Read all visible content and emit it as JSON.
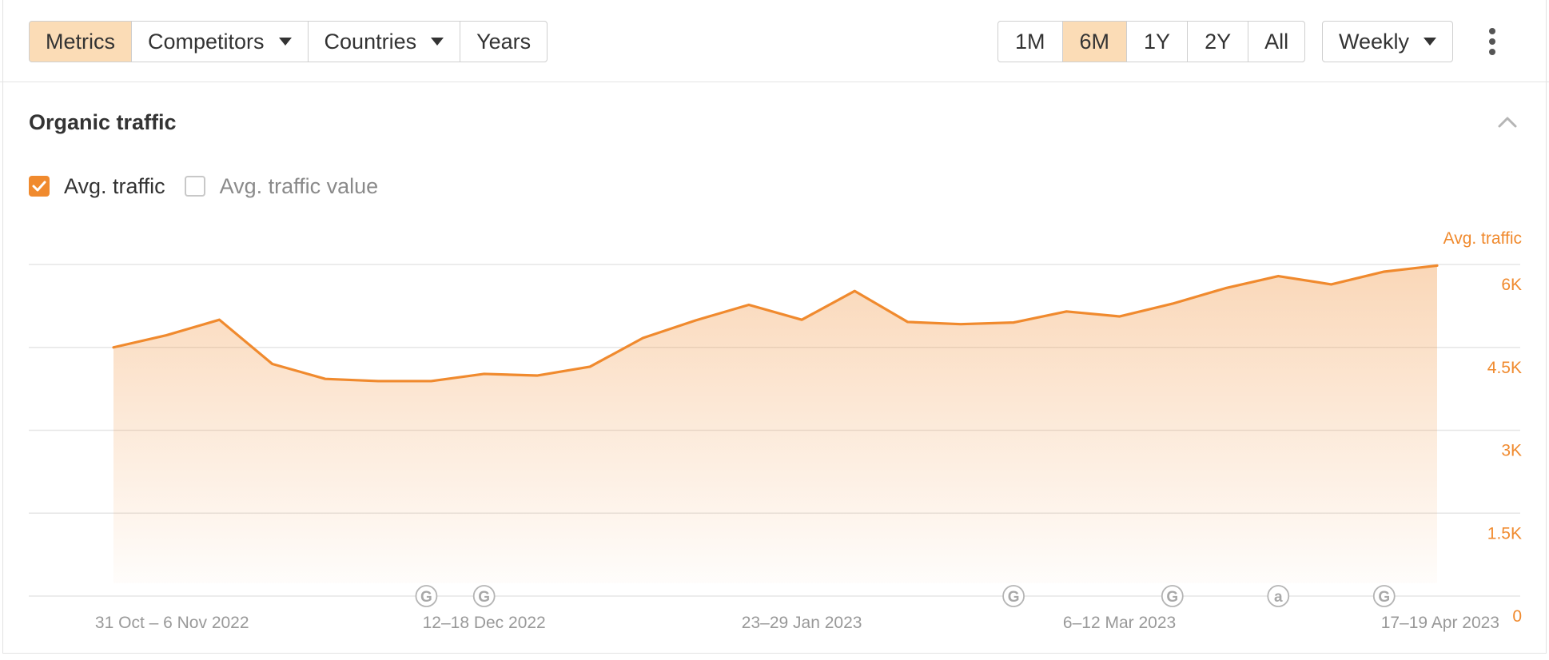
{
  "toolbar": {
    "left_buttons": [
      {
        "label": "Metrics",
        "active": true,
        "dropdown": false
      },
      {
        "label": "Competitors",
        "active": false,
        "dropdown": true
      },
      {
        "label": "Countries",
        "active": false,
        "dropdown": true
      },
      {
        "label": "Years",
        "active": false,
        "dropdown": false
      }
    ],
    "ranges": [
      {
        "label": "1M",
        "active": false
      },
      {
        "label": "6M",
        "active": true
      },
      {
        "label": "1Y",
        "active": false
      },
      {
        "label": "2Y",
        "active": false
      },
      {
        "label": "All",
        "active": false
      }
    ],
    "interval": {
      "label": "Weekly",
      "dropdown": true
    },
    "more_icon": "more-vertical-icon"
  },
  "section": {
    "title": "Organic traffic",
    "collapse_icon": "chevron-up-icon"
  },
  "legend": [
    {
      "label": "Avg. traffic",
      "checked": true
    },
    {
      "label": "Avg. traffic value",
      "checked": false
    }
  ],
  "colors": {
    "accent": "#f08a2e",
    "active_button": "#fbdcb6",
    "grid": "#e6e6e6",
    "muted_text": "#999999"
  },
  "chart_data": {
    "type": "area",
    "y_axis_title": "Avg. traffic",
    "ylim": [
      0,
      6000
    ],
    "y_ticks": [
      {
        "value": 0,
        "label": "0"
      },
      {
        "value": 1500,
        "label": "1.5K"
      },
      {
        "value": 3000,
        "label": "3K"
      },
      {
        "value": 4500,
        "label": "4.5K"
      },
      {
        "value": 6000,
        "label": "6K"
      }
    ],
    "x_tick_labels": [
      {
        "index": 1,
        "label": "31 Oct – 6 Nov 2022"
      },
      {
        "index": 7,
        "label": "12–18 Dec 2022"
      },
      {
        "index": 13,
        "label": "23–29 Jan 2023"
      },
      {
        "index": 19,
        "label": "6–12 Mar 2023"
      },
      {
        "index": 25,
        "label": "17–19 Apr 2023"
      }
    ],
    "series": [
      {
        "name": "Avg. traffic",
        "values": [
          4500,
          4720,
          5000,
          4200,
          3930,
          3890,
          3890,
          4020,
          3990,
          4150,
          4670,
          4990,
          5270,
          5000,
          5520,
          4960,
          4920,
          4950,
          5150,
          5060,
          5290,
          5570,
          5790,
          5640,
          5870,
          5980
        ]
      }
    ],
    "annotations": [
      {
        "index": 6,
        "icon": "G"
      },
      {
        "index": 7,
        "icon": "G"
      },
      {
        "index": 17,
        "icon": "G"
      },
      {
        "index": 20,
        "icon": "G"
      },
      {
        "index": 22,
        "icon": "a"
      },
      {
        "index": 24,
        "icon": "G"
      }
    ],
    "grid": true
  }
}
